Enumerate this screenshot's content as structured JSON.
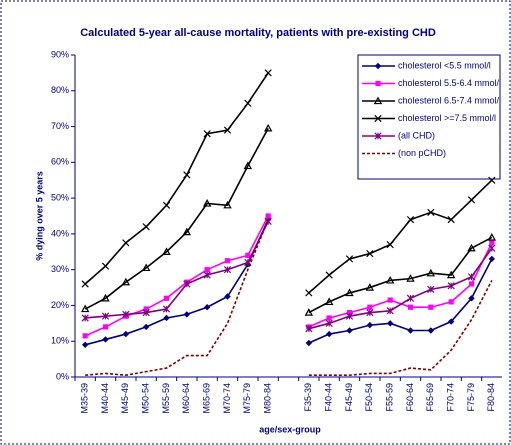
{
  "chart_data": {
    "type": "line",
    "title": "Calculated 5-year all-cause mortality, patients with pre-existing CHD",
    "x_label": "age/sex-group",
    "y_label": "% dying over 5 years",
    "categories": [
      "M35-39",
      "M40-44",
      "M45-49",
      "M50-54",
      "M55-59",
      "M60-64",
      "M65-69",
      "M70-74",
      "M75-79",
      "M80-84",
      null,
      "F35-39",
      "F40-44",
      "F45-49",
      "F50-54",
      "F55-59",
      "F60-64",
      "F65-69",
      "F70-74",
      "F75-79",
      "F80-84"
    ],
    "ylim": [
      0,
      90
    ],
    "yticks": [
      {
        "value": 0,
        "label": "0%"
      },
      {
        "value": 10,
        "label": "10%"
      },
      {
        "value": 20,
        "label": "20%"
      },
      {
        "value": 30,
        "label": "30%"
      },
      {
        "value": 40,
        "label": "40%"
      },
      {
        "value": 50,
        "label": "50%"
      },
      {
        "value": 60,
        "label": "60%"
      },
      {
        "value": 70,
        "label": "70%"
      },
      {
        "value": 80,
        "label": "80%"
      },
      {
        "value": 90,
        "label": "90%"
      }
    ],
    "legend": "top-right",
    "series": [
      {
        "name": "cholesterol <5.5 mmol/l",
        "color": "#000080",
        "marker": "diamond",
        "dashed": false,
        "values": [
          9,
          10.5,
          12,
          14,
          16.5,
          17.5,
          19.5,
          22.5,
          31.5,
          44,
          null,
          9.5,
          12,
          13,
          14.5,
          15,
          13,
          13,
          15.5,
          22,
          33
        ]
      },
      {
        "name": "cholesterol 5.5-6.4 mmol/l",
        "color": "#ff00ff",
        "marker": "square",
        "dashed": false,
        "values": [
          11.5,
          14,
          17,
          19,
          22,
          26.5,
          30,
          32.5,
          34,
          45,
          null,
          14,
          16.5,
          18,
          19.5,
          21.5,
          19.5,
          19.5,
          21,
          26,
          37.5
        ]
      },
      {
        "name": "cholesterol 6.5-7.4 mmol/l",
        "color": "#000000",
        "marker": "triangle",
        "dashed": false,
        "values": [
          19,
          22,
          26.5,
          30.5,
          35,
          40.5,
          48.5,
          48,
          59,
          69.5,
          null,
          18,
          21,
          23.5,
          25,
          27,
          27.5,
          29,
          28.5,
          36,
          39
        ]
      },
      {
        "name": "cholesterol >=7.5 mmol/l",
        "color": "#000000",
        "marker": "x",
        "dashed": false,
        "values": [
          26,
          31,
          37.5,
          42,
          48,
          56.5,
          68,
          69,
          76.5,
          85,
          null,
          23.5,
          28.5,
          33,
          34.5,
          37,
          44,
          46,
          44,
          49.5,
          55
        ]
      },
      {
        "name": "(all CHD)",
        "color": "#800080",
        "marker": "star",
        "dashed": false,
        "values": [
          16.5,
          17,
          17.5,
          18,
          19,
          26,
          28.5,
          30,
          32,
          43.5,
          null,
          13.5,
          15,
          17,
          18,
          18.5,
          22,
          24.5,
          25.5,
          28,
          36
        ]
      },
      {
        "name": "(non pCHD)",
        "color": "#800000",
        "marker": "none",
        "dashed": true,
        "values": [
          0.5,
          1,
          0.5,
          1.5,
          2.5,
          6,
          6,
          15,
          30,
          44,
          null,
          0.5,
          0.5,
          0.5,
          1,
          1,
          2.5,
          2,
          7.5,
          16,
          27
        ]
      }
    ]
  }
}
